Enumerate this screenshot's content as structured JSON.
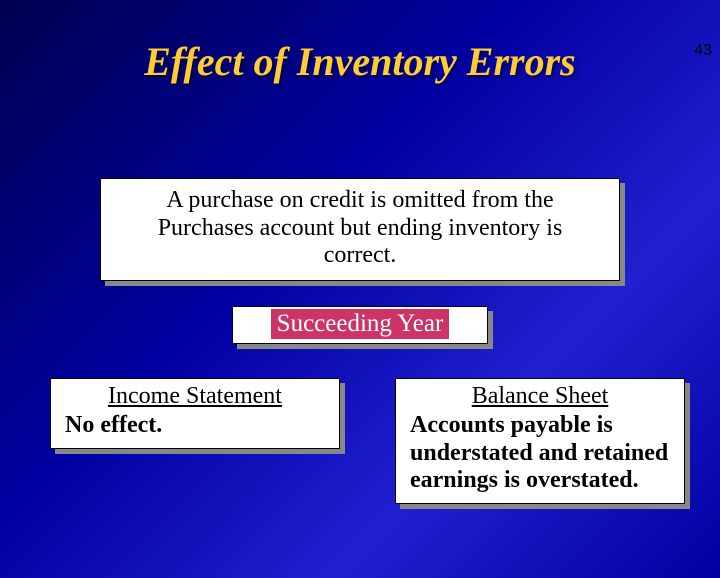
{
  "page_number": "43",
  "title": "Effect of Inventory Errors",
  "main_box": {
    "text": "A purchase on credit is omitted from the Purchases account but ending inventory is correct."
  },
  "succeeding_box": {
    "label": "Succeeding Year"
  },
  "left_box": {
    "heading": "Income Statement",
    "body": "No effect."
  },
  "right_box": {
    "heading": "Balance Sheet",
    "body": "Accounts payable is understated and retained earnings is overstated."
  },
  "colors": {
    "title_color": "#ffcc33",
    "succeeding_bg": "#cc3366",
    "box_bg": "#ffffff",
    "shadow": "#888888"
  }
}
